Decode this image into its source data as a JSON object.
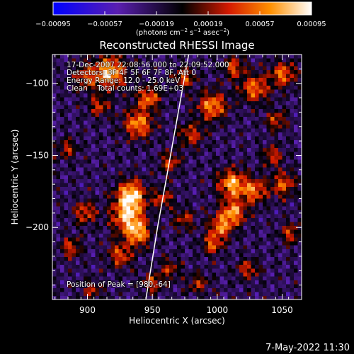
{
  "chart_data": {
    "type": "heatmap",
    "title": "Reconstructed RHESSI Image",
    "xlabel": "Heliocentric X (arcsec)",
    "ylabel": "Heliocentric Y (arcsec)",
    "xlim": [
      873,
      1065
    ],
    "ylim": [
      -250,
      -80
    ],
    "x_ticks": [
      900,
      950,
      1000,
      1050
    ],
    "x_tick_labels": [
      "900",
      "950",
      "1000",
      "1050"
    ],
    "y_ticks": [
      -100,
      -150,
      -200
    ],
    "y_tick_labels": [
      "−100",
      "−150",
      "−200"
    ],
    "colorbar": {
      "range": [
        -0.00095,
        0.00095
      ],
      "ticks": [
        -0.00095,
        -0.00057,
        -0.00019,
        0.00019,
        0.00057,
        0.00095
      ],
      "tick_labels": [
        "−0.00095",
        "−0.00057",
        "−0.00019",
        "0.00019",
        "0.00057",
        "0.00095"
      ],
      "unit_prefix": "(photons cm",
      "unit_exp1": "−2",
      "unit_mid": " s",
      "unit_exp2": "−1",
      "unit_mid2": " asec",
      "unit_exp3": "−2",
      "unit_suffix": ")"
    },
    "limb_curve": [
      [
        978,
        -80
      ],
      [
        970,
        -120
      ],
      [
        962,
        -160
      ],
      [
        954,
        -200
      ],
      [
        945,
        -250
      ]
    ],
    "peak": [
      980,
      -64
    ]
  },
  "annotations": {
    "time": "17-Dec-2007 22:08:56.000 to 22:09:52.000",
    "detectors": "Detectors: 3F 4F 5F 6F 7F 8F, Att 0",
    "energy": "Energy Range: 12.0 - 25.0 keV",
    "clean": "Clean    Total counts: 1.69E+03",
    "peak": "Position of Peak = [980,-64]"
  },
  "footer": {
    "date": "7-May-2022 11:30"
  },
  "colors": {
    "background": "#000000",
    "text": "#ffffff",
    "colormap": [
      "#0000ff",
      "#5a1fb0",
      "#000000",
      "#d41a00",
      "#ff9000",
      "#ffffff"
    ]
  }
}
